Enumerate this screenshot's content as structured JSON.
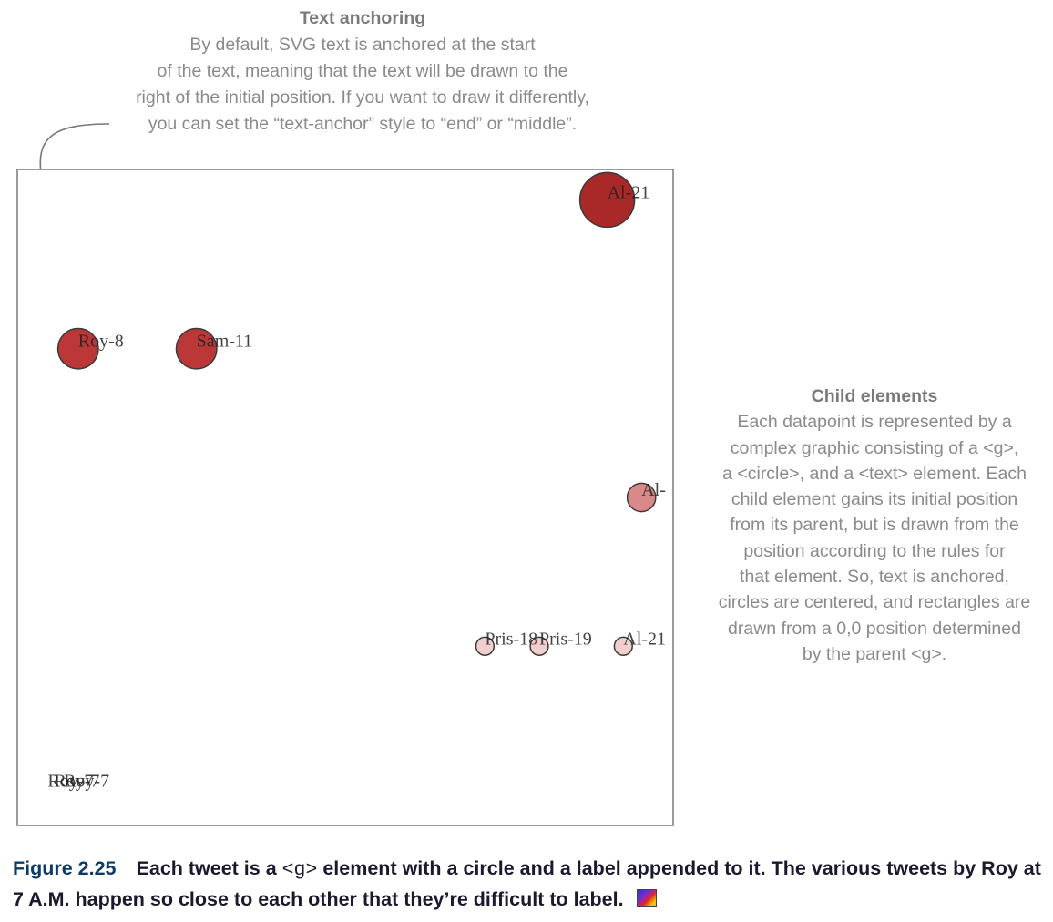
{
  "annotations": {
    "text_anchoring": {
      "title": "Text anchoring",
      "lines": [
        "By default, SVG text is anchored at the start",
        "of the text, meaning that the text will be drawn to the",
        "right of the initial position. If you want to draw it differently,",
        "you can set the “text-anchor” style to “end” or “middle”."
      ]
    },
    "child_elements": {
      "title": "Child elements",
      "lines": [
        "Each datapoint is represented by a",
        "complex graphic consisting of a <g>,",
        "a <circle>, and a <text> element. Each",
        "child element gains its initial position",
        "from its parent, but is drawn from the",
        "position according to the rules for",
        "that element. So, text is anchored,",
        "circles are centered, and rectangles are",
        "drawn from a 0,0 position determined",
        "by the parent <g>."
      ]
    }
  },
  "caption": {
    "figure_number": "Figure 2.25",
    "part1": "Each tweet is a ",
    "code": "<g>",
    "part2": " element with a circle and a label appended to it. The various tweets by Roy at 7 A.M. happen so close to each other that they’re difficult to label."
  },
  "chart_data": {
    "type": "scatter",
    "title": "",
    "xlabel": "",
    "ylabel": "",
    "grid": false,
    "legend": "none",
    "x_range": [
      0,
      1
    ],
    "y_range": [
      0,
      1
    ],
    "points": [
      {
        "label": "Al-21",
        "x": 0.905,
        "y": 0.96,
        "size": 1.0,
        "color": "#a01212",
        "opacity": 0.9
      },
      {
        "label": "Roy-8",
        "x": 0.087,
        "y": 0.73,
        "size": 0.74,
        "color": "#b01515",
        "opacity": 0.85
      },
      {
        "label": "Sam-11",
        "x": 0.27,
        "y": 0.73,
        "size": 0.74,
        "color": "#b01515",
        "opacity": 0.85
      },
      {
        "label": "Al-",
        "x": 0.958,
        "y": 0.5,
        "size": 0.52,
        "color": "#c03a3a",
        "opacity": 0.6
      },
      {
        "label": "Pris-18",
        "x": 0.716,
        "y": 0.27,
        "size": 0.33,
        "color": "#d06060",
        "opacity": 0.3
      },
      {
        "label": "Pris-19",
        "x": 0.8,
        "y": 0.27,
        "size": 0.33,
        "color": "#d06060",
        "opacity": 0.3
      },
      {
        "label": "Al-21",
        "x": 0.93,
        "y": 0.27,
        "size": 0.33,
        "color": "#d06060",
        "opacity": 0.3
      },
      {
        "label": "Roy-7",
        "x": 0.04,
        "y": 0.05,
        "size": 0.0,
        "color": "#333333",
        "opacity": 0.8
      },
      {
        "label": "Roy-7",
        "x": 0.05,
        "y": 0.05,
        "size": 0.0,
        "color": "#333333",
        "opacity": 0.8
      },
      {
        "label": "Roy-7",
        "x": 0.065,
        "y": 0.05,
        "size": 0.0,
        "color": "#333333",
        "opacity": 0.8
      }
    ]
  }
}
